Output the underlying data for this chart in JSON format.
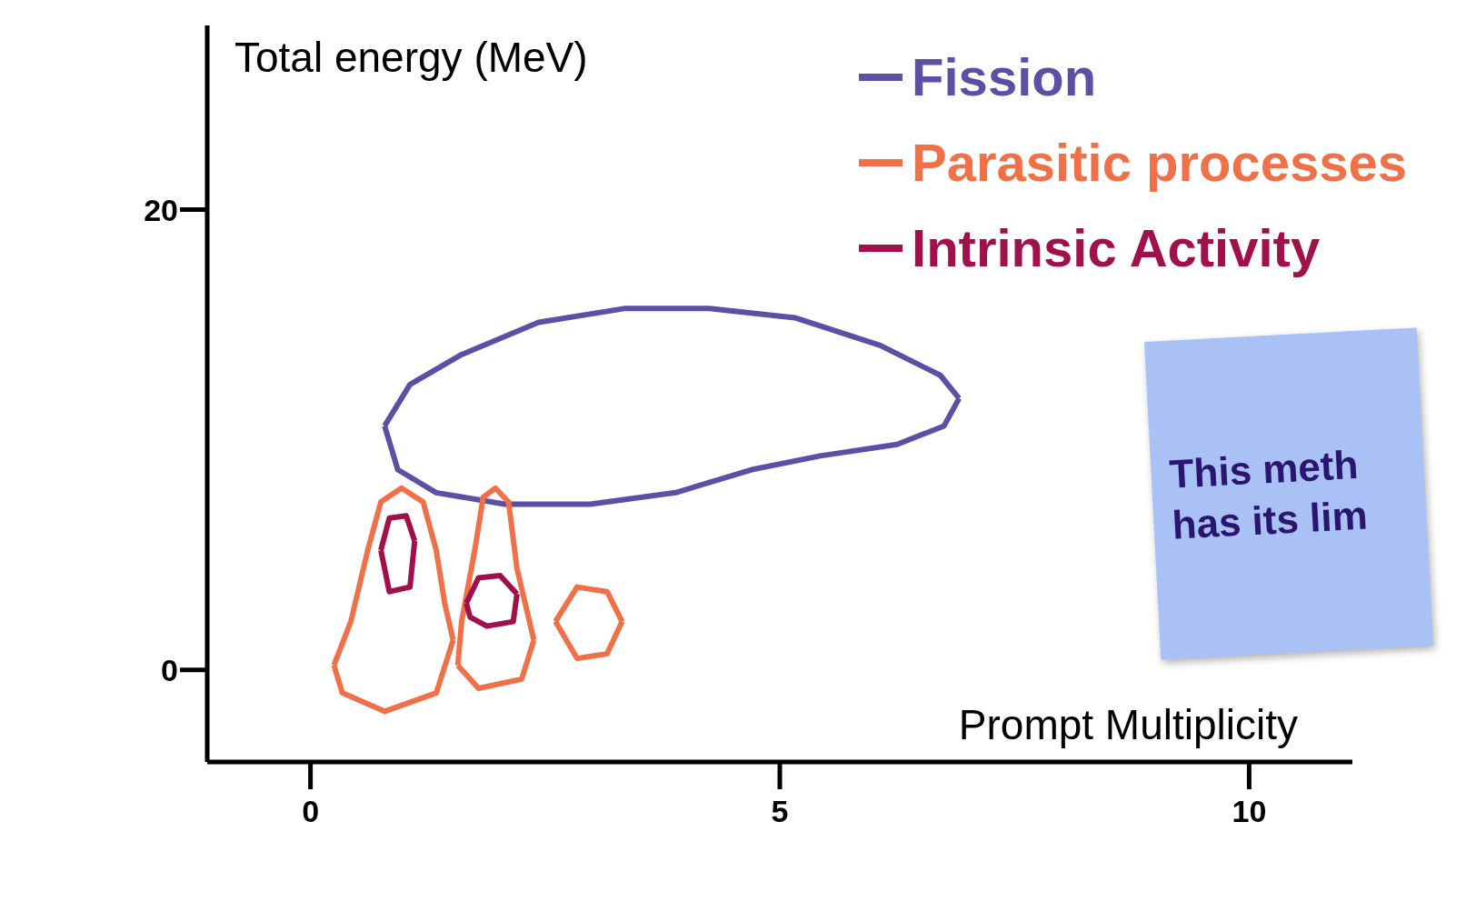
{
  "chart_data": {
    "type": "line",
    "ylabel": "Total energy (MeV)",
    "xlabel": "Prompt Multiplicity",
    "xlim": [
      -1.1,
      11.1
    ],
    "ylim": [
      -4,
      28
    ],
    "xticks": [
      0,
      5,
      10
    ],
    "yticks": [
      0,
      20
    ],
    "grid": false,
    "legend": "top right",
    "marker": "none",
    "line_style": "solid",
    "annotations": [
      "This meth has its lim"
    ],
    "series": [
      {
        "name": "Fission",
        "color": "#5b4fa6",
        "x": [
          0.79,
          1.06,
          1.61,
          2.43,
          3.34,
          4.25,
          5.16,
          6.07,
          6.71,
          6.91,
          null,
          0.79,
          0.93,
          1.34,
          2.07,
          2.98,
          3.89,
          4.7,
          5.43,
          6.25,
          6.75,
          6.91
        ],
        "values": [
          10.6,
          12.4,
          13.7,
          15.1,
          15.7,
          15.7,
          15.3,
          14.1,
          12.8,
          11.8,
          null,
          10.6,
          8.7,
          7.7,
          7.2,
          7.2,
          7.7,
          8.7,
          9.3,
          9.8,
          10.6,
          11.8
        ]
      },
      {
        "name": "Parasitic processes",
        "color": "#f07048",
        "x": [
          0.25,
          0.43,
          0.61,
          0.75,
          0.97,
          1.2,
          1.34,
          1.43,
          1.52,
          null,
          0.25,
          0.34,
          0.79,
          1.34,
          1.52,
          null,
          1.57,
          1.61,
          1.75,
          1.84,
          1.97,
          2.11,
          2.2,
          2.38,
          null,
          1.57,
          1.79,
          2.25,
          2.38,
          null,
          2.61,
          2.84,
          3.16,
          3.32,
          null,
          2.61,
          2.84,
          3.16,
          3.32
        ],
        "values": [
          0.2,
          2.1,
          5.2,
          7.3,
          7.9,
          7.3,
          5.2,
          2.9,
          1.3,
          null,
          0.2,
          -1.0,
          -1.8,
          -1.0,
          1.3,
          null,
          0.2,
          2.1,
          5.2,
          7.5,
          7.9,
          7.3,
          4.4,
          1.3,
          null,
          0.2,
          -0.8,
          -0.4,
          1.3,
          null,
          2.1,
          3.6,
          3.4,
          2.1,
          null,
          2.1,
          0.5,
          0.7,
          2.1
        ]
      },
      {
        "name": "Intrinsic Activity",
        "color": "#a0104a",
        "x": [
          0.75,
          0.84,
          1.02,
          1.11,
          null,
          0.75,
          0.84,
          1.06,
          1.11,
          null,
          1.66,
          1.79,
          2.02,
          2.2,
          null,
          1.66,
          1.7,
          1.88,
          2.16,
          2.2
        ],
        "values": [
          5.2,
          6.6,
          6.7,
          5.6,
          null,
          5.2,
          3.4,
          3.6,
          5.6,
          null,
          2.9,
          4.0,
          4.1,
          3.3,
          null,
          2.9,
          2.3,
          1.9,
          2.1,
          3.3
        ]
      }
    ]
  }
}
